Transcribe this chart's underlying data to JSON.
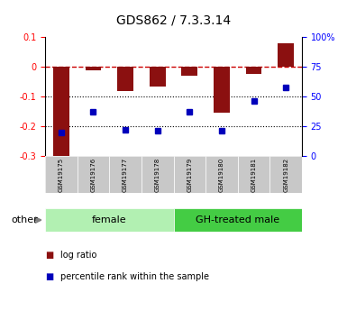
{
  "title": "GDS862 / 7.3.3.14",
  "samples": [
    "GSM19175",
    "GSM19176",
    "GSM19177",
    "GSM19178",
    "GSM19179",
    "GSM19180",
    "GSM19181",
    "GSM19182"
  ],
  "log_ratio": [
    -0.305,
    -0.01,
    -0.08,
    -0.065,
    -0.03,
    -0.155,
    -0.025,
    0.08
  ],
  "pct_rank": [
    20,
    37,
    22,
    21,
    37,
    21,
    46,
    58
  ],
  "groups": [
    {
      "label": "female",
      "start": 0,
      "end": 4,
      "color": "#b2f0b2"
    },
    {
      "label": "GH-treated male",
      "start": 4,
      "end": 8,
      "color": "#44cc44"
    }
  ],
  "other_label": "other",
  "ylim_left": [
    -0.3,
    0.1
  ],
  "ylim_right": [
    0,
    100
  ],
  "yticks_left": [
    -0.3,
    -0.2,
    -0.1,
    0.0,
    0.1
  ],
  "yticks_right": [
    0,
    25,
    50,
    75,
    100
  ],
  "bar_color": "#8B1010",
  "dot_color": "#0000BB",
  "dotted_lines": [
    -0.1,
    -0.2
  ],
  "legend_items": [
    "log ratio",
    "percentile rank within the sample"
  ],
  "title_fontsize": 10,
  "tick_fontsize": 7,
  "bar_width": 0.5
}
